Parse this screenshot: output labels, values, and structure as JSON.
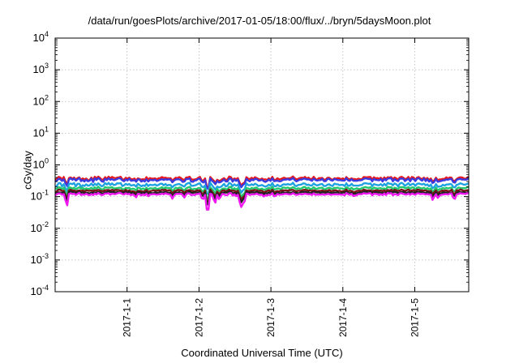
{
  "chart_data": {
    "type": "line",
    "title": "/data/run/goesPlots/archive/2017-01-05/18:00/flux/../bryn/5daysMoon.plot",
    "xlabel": "Coordinated Universal Time (UTC)",
    "ylabel": "cGy/day",
    "yscale": "log",
    "ylim": [
      0.0001,
      10000
    ],
    "yticks": [
      {
        "base": "10",
        "exp": "4"
      },
      {
        "base": "10",
        "exp": "3"
      },
      {
        "base": "10",
        "exp": "2"
      },
      {
        "base": "10",
        "exp": "1"
      },
      {
        "base": "10",
        "exp": "0"
      },
      {
        "base": "10",
        "exp": "-1"
      },
      {
        "base": "10",
        "exp": "-2"
      },
      {
        "base": "10",
        "exp": "-3"
      },
      {
        "base": "10",
        "exp": "-4"
      }
    ],
    "xlim": [
      0,
      5.75
    ],
    "xunit": "days from 2016-12-31 00:00 UTC",
    "xticks": [
      {
        "x": 1,
        "label": "2017-1-1"
      },
      {
        "x": 2,
        "label": "2017-1-2"
      },
      {
        "x": 3,
        "label": "2017-1-3"
      },
      {
        "x": 4,
        "label": "2017-1-4"
      },
      {
        "x": 5,
        "label": "2017-1-5"
      }
    ],
    "grid": true,
    "series": [
      {
        "color": "#e8191e",
        "base": 0.38,
        "noise": 0.12,
        "dipScale": 0.55
      },
      {
        "color": "#3a3ae0",
        "base": 0.34,
        "noise": 0.12,
        "dipScale": 0.55
      },
      {
        "color": "#1fa3e0",
        "base": 0.24,
        "noise": 0.12,
        "dipScale": 0.6
      },
      {
        "color": "#22c86e",
        "base": 0.185,
        "noise": 0.08,
        "dipScale": 0.65
      },
      {
        "color": "#7a1418",
        "base": 0.155,
        "noise": 0.06,
        "dipScale": 0.7
      },
      {
        "color": "#222222",
        "base": 0.135,
        "noise": 0.05,
        "dipScale": 0.75
      },
      {
        "color": "#f018f0",
        "base": 0.12,
        "noise": 0.07,
        "dipScale": 1.0
      }
    ],
    "dips": [
      {
        "x": 0.16,
        "y": 0.04
      },
      {
        "x": 1.12,
        "y": 0.09
      },
      {
        "x": 1.3,
        "y": 0.1
      },
      {
        "x": 1.63,
        "y": 0.085
      },
      {
        "x": 1.8,
        "y": 0.09
      },
      {
        "x": 2.05,
        "y": 0.07
      },
      {
        "x": 2.12,
        "y": 0.018
      },
      {
        "x": 2.22,
        "y": 0.05
      },
      {
        "x": 2.28,
        "y": 0.08
      },
      {
        "x": 2.52,
        "y": 0.1
      },
      {
        "x": 2.58,
        "y": 0.035
      },
      {
        "x": 2.62,
        "y": 0.045
      },
      {
        "x": 2.9,
        "y": 0.1
      },
      {
        "x": 3.05,
        "y": 0.1
      },
      {
        "x": 4.15,
        "y": 0.1
      },
      {
        "x": 5.25,
        "y": 0.075
      },
      {
        "x": 5.32,
        "y": 0.09
      },
      {
        "x": 5.55,
        "y": 0.075
      }
    ]
  }
}
